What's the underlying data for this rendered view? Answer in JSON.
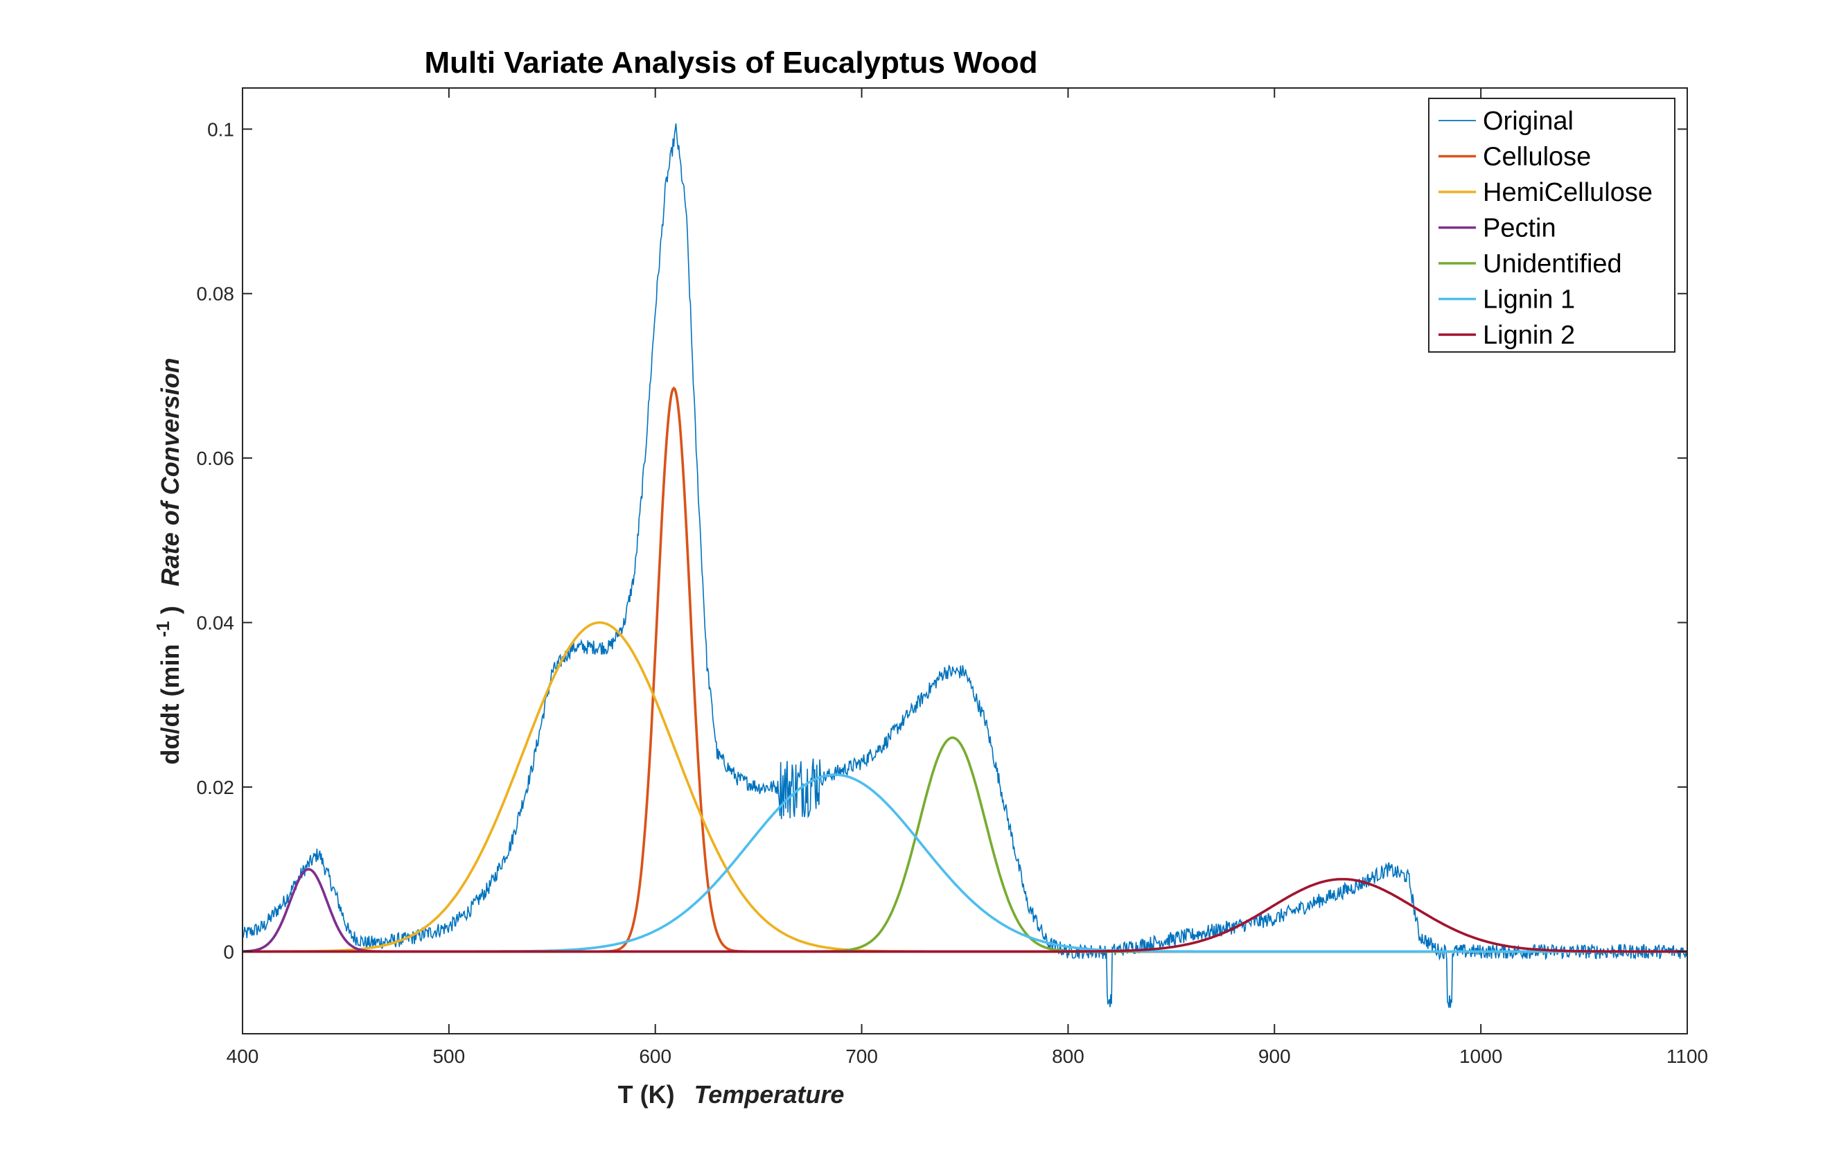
{
  "chart_data": {
    "type": "line",
    "title": "Multi Variate Analysis of Eucalyptus Wood",
    "xlabel": "T (K)",
    "xlabel_italic": "Temperature",
    "ylabel_main": "dα/dt (min",
    "ylabel_sup": "-1",
    "ylabel_close": ")",
    "ylabel_italic": "Rate of Conversion",
    "xlim": [
      400,
      1100
    ],
    "ylim": [
      -0.01,
      0.105
    ],
    "xticks": [
      400,
      500,
      600,
      700,
      800,
      900,
      1000,
      1100
    ],
    "xtick_labels": [
      "400",
      "500",
      "600",
      "700",
      "800",
      "900",
      "1000",
      "1100"
    ],
    "yticks": [
      0,
      0.02,
      0.04,
      0.06,
      0.08,
      0.1
    ],
    "ytick_labels": [
      "0",
      "0.02",
      "0.04",
      "0.06",
      "0.08",
      "0.1"
    ],
    "grid": false,
    "legend_position": "top-right",
    "series": [
      {
        "name": "Original",
        "color": "#0072BD",
        "points": [
          [
            400,
            0.002
          ],
          [
            410,
            0.003
          ],
          [
            420,
            0.006
          ],
          [
            430,
            0.01
          ],
          [
            437,
            0.012
          ],
          [
            445,
            0.007
          ],
          [
            452,
            0.002
          ],
          [
            460,
            0.001
          ],
          [
            480,
            0.0015
          ],
          [
            500,
            0.003
          ],
          [
            510,
            0.005
          ],
          [
            520,
            0.008
          ],
          [
            530,
            0.013
          ],
          [
            540,
            0.022
          ],
          [
            550,
            0.034
          ],
          [
            560,
            0.037
          ],
          [
            570,
            0.037
          ],
          [
            578,
            0.037
          ],
          [
            585,
            0.04
          ],
          [
            590,
            0.046
          ],
          [
            595,
            0.06
          ],
          [
            600,
            0.078
          ],
          [
            605,
            0.093
          ],
          [
            610,
            0.1
          ],
          [
            615,
            0.09
          ],
          [
            620,
            0.06
          ],
          [
            625,
            0.035
          ],
          [
            630,
            0.024
          ],
          [
            640,
            0.021
          ],
          [
            650,
            0.02
          ],
          [
            660,
            0.02
          ],
          [
            670,
            0.02
          ],
          [
            680,
            0.021
          ],
          [
            690,
            0.022
          ],
          [
            700,
            0.023
          ],
          [
            710,
            0.025
          ],
          [
            720,
            0.028
          ],
          [
            730,
            0.031
          ],
          [
            740,
            0.034
          ],
          [
            750,
            0.034
          ],
          [
            760,
            0.028
          ],
          [
            770,
            0.017
          ],
          [
            780,
            0.006
          ],
          [
            790,
            0.001
          ],
          [
            800,
            0.0
          ],
          [
            820,
            0.0
          ],
          [
            840,
            0.001
          ],
          [
            860,
            0.002
          ],
          [
            880,
            0.003
          ],
          [
            900,
            0.004
          ],
          [
            920,
            0.006
          ],
          [
            940,
            0.008
          ],
          [
            955,
            0.01
          ],
          [
            965,
            0.009
          ],
          [
            970,
            0.002
          ],
          [
            980,
            0.0
          ],
          [
            1000,
            0.0
          ],
          [
            1050,
            0.0
          ],
          [
            1100,
            0.0
          ]
        ]
      },
      {
        "name": "Cellulose",
        "color": "#D95319",
        "peak": 0.0685,
        "center": 609,
        "sigma": 8
      },
      {
        "name": "HemiCellulose",
        "color": "#EDB120",
        "peak": 0.04,
        "center": 573,
        "sigma": 37
      },
      {
        "name": "Pectin",
        "color": "#7E2F8E",
        "peak": 0.01,
        "center": 432,
        "sigma": 9
      },
      {
        "name": "Unidentified",
        "color": "#77AC30",
        "peak": 0.026,
        "center": 744,
        "sigma": 16
      },
      {
        "name": "Lignin 1",
        "color": "#4DBEEE",
        "peak": 0.0215,
        "center": 687,
        "sigma": 42
      },
      {
        "name": "Lignin 2",
        "color": "#A2142F",
        "peak": 0.0088,
        "center": 933,
        "sigma": 35
      }
    ]
  }
}
